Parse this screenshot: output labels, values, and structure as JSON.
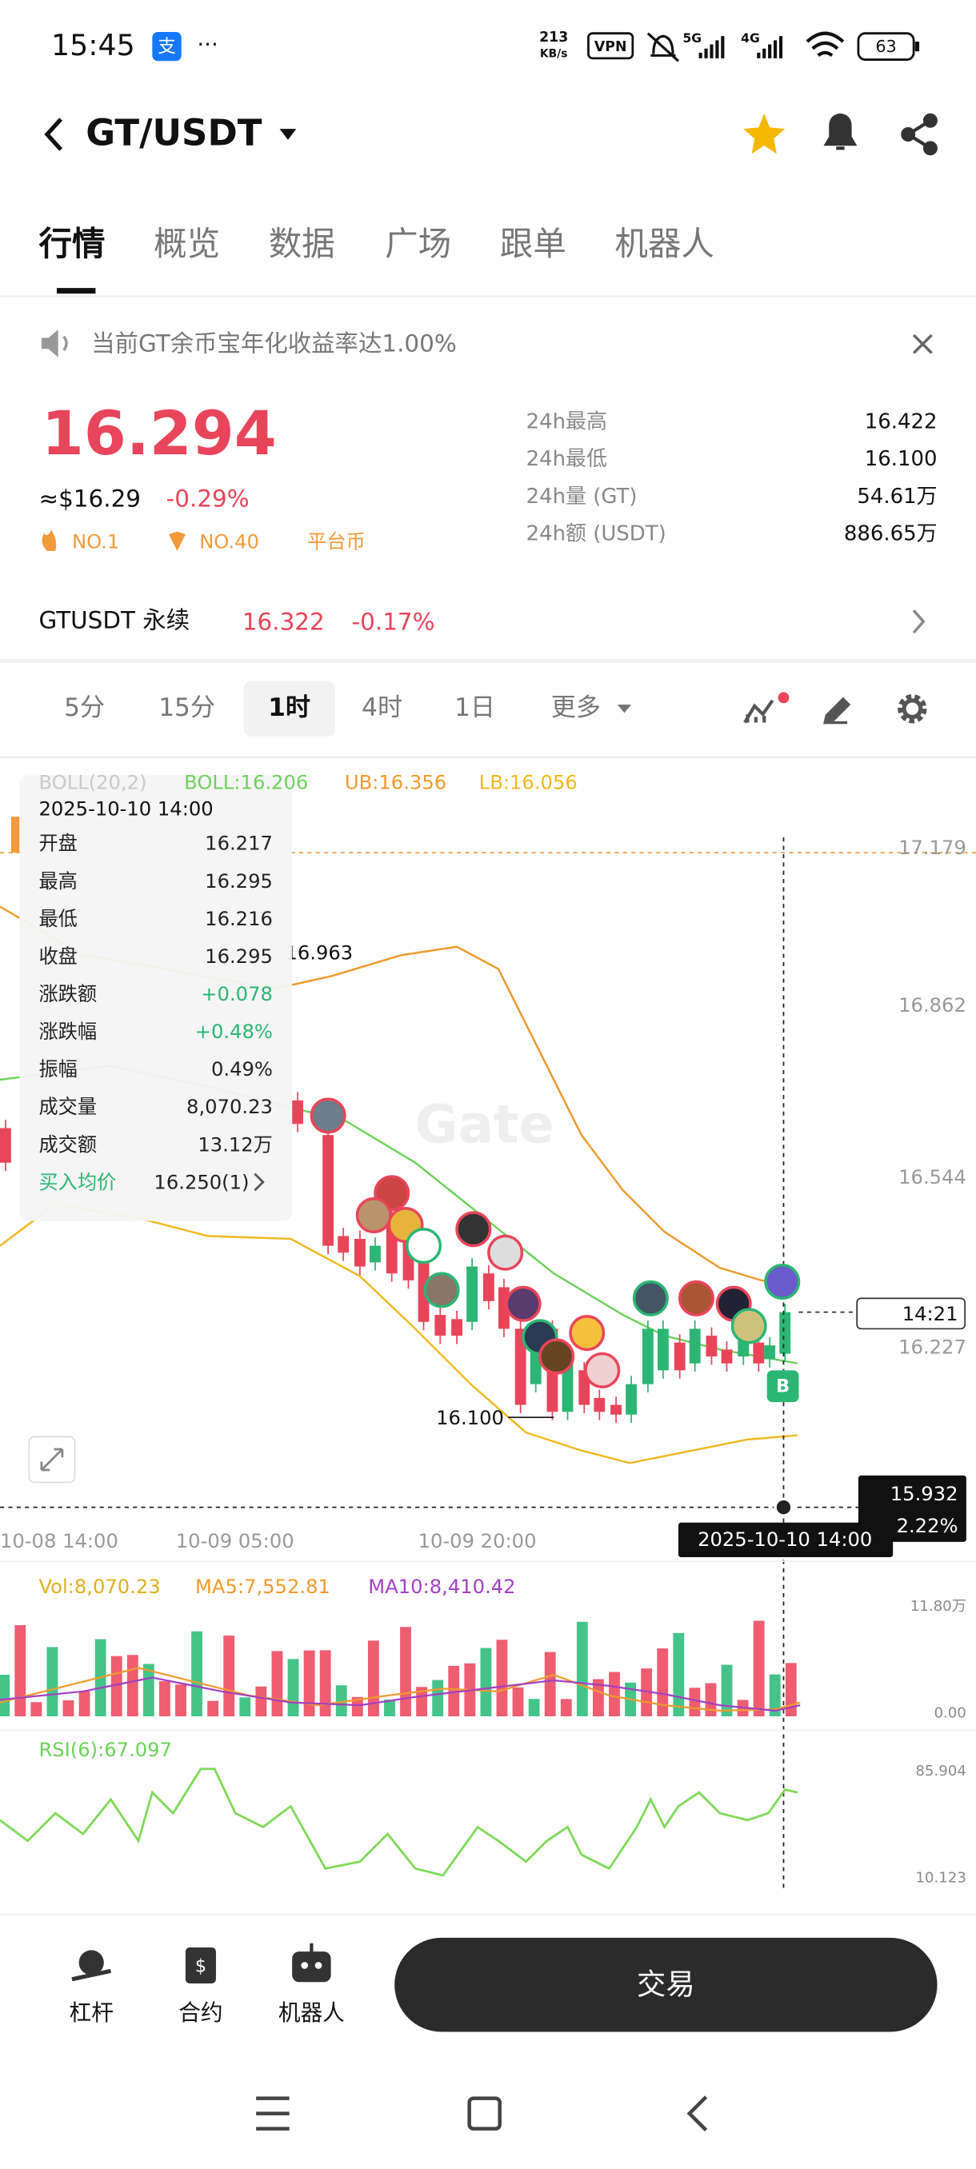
{
  "status_bar": {
    "time": "15:45",
    "net_speed": "213",
    "net_unit": "KB/s",
    "vpn": "VPN",
    "signal_1": "5G",
    "signal_2": "4G",
    "battery": "63"
  },
  "header": {
    "pair": "GT/USDT"
  },
  "tabs": [
    "行情",
    "概览",
    "数据",
    "广场",
    "跟单",
    "机器人"
  ],
  "notice": "当前GT余币宝年化收益率达1.00%",
  "price": {
    "last": "16.294",
    "usd": "≈$16.29",
    "change": "-0.29%",
    "badges": [
      "NO.1",
      "NO.40",
      "平台币"
    ]
  },
  "stats": [
    {
      "label": "24h最高",
      "value": "16.422"
    },
    {
      "label": "24h最低",
      "value": "16.100"
    },
    {
      "label": "24h量 (GT)",
      "value": "54.61万"
    },
    {
      "label": "24h额 (USDT)",
      "value": "886.65万"
    }
  ],
  "perpetual": {
    "name": "GTUSDT 永续",
    "price": "16.322",
    "change": "-0.17%"
  },
  "intervals": [
    "5分",
    "15分",
    "1时",
    "4时",
    "1日",
    "更多"
  ],
  "chart": {
    "boll_title": "BOLL(20,2)",
    "boll": "BOLL:16.206",
    "ub": "UB:16.356",
    "lb": "LB:16.056",
    "watermark": "Gate",
    "price_axis": [
      "17.179",
      "16.862",
      "16.544",
      "16.227"
    ],
    "countdown": "14:21",
    "cross_price": "15.932",
    "cross_pct": "2.22%",
    "high_label": "16.963",
    "low_label": "16.100",
    "marker": "B",
    "time_axis": [
      "10-08 14:00",
      "10-09 05:00",
      "10-09 20:00"
    ],
    "cross_time": "2025-10-10 14:00",
    "tooltip": {
      "date": "2025-10-10 14:00",
      "rows": [
        {
          "label": "开盘",
          "value": "16.217"
        },
        {
          "label": "最高",
          "value": "16.295"
        },
        {
          "label": "最低",
          "value": "16.216"
        },
        {
          "label": "收盘",
          "value": "16.295"
        },
        {
          "label": "涨跌额",
          "value": "+0.078"
        },
        {
          "label": "涨跌幅",
          "value": "+0.48%"
        },
        {
          "label": "振幅",
          "value": "0.49%"
        },
        {
          "label": "成交量",
          "value": "8,070.23"
        },
        {
          "label": "成交额",
          "value": "13.12万"
        },
        {
          "label": "买入均价",
          "value": "16.250(1)"
        }
      ]
    }
  },
  "volume": {
    "vol": "Vol:8,070.23",
    "ma5": "MA5:7,552.81",
    "ma10": "MA10:8,410.42",
    "axis": [
      "11.80万",
      "0.00"
    ]
  },
  "rsi": {
    "label": "RSI(6):67.097",
    "axis": [
      "85.904",
      "10.123"
    ]
  },
  "bottom_nav": [
    "杠杆",
    "合约",
    "机器人"
  ],
  "trade_button": "交易"
}
